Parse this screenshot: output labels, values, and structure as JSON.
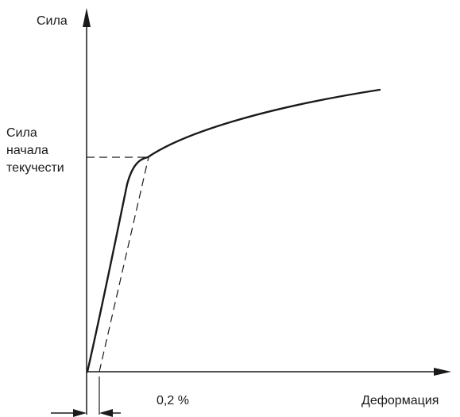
{
  "labels": {
    "y_axis": "Сила",
    "yield_force": [
      "Сила",
      "начала",
      "текучести"
    ],
    "offset": "0,2 %",
    "x_axis": "Деформация"
  },
  "colors": {
    "ink": "#1a1a1a",
    "background": "#ffffff"
  }
}
